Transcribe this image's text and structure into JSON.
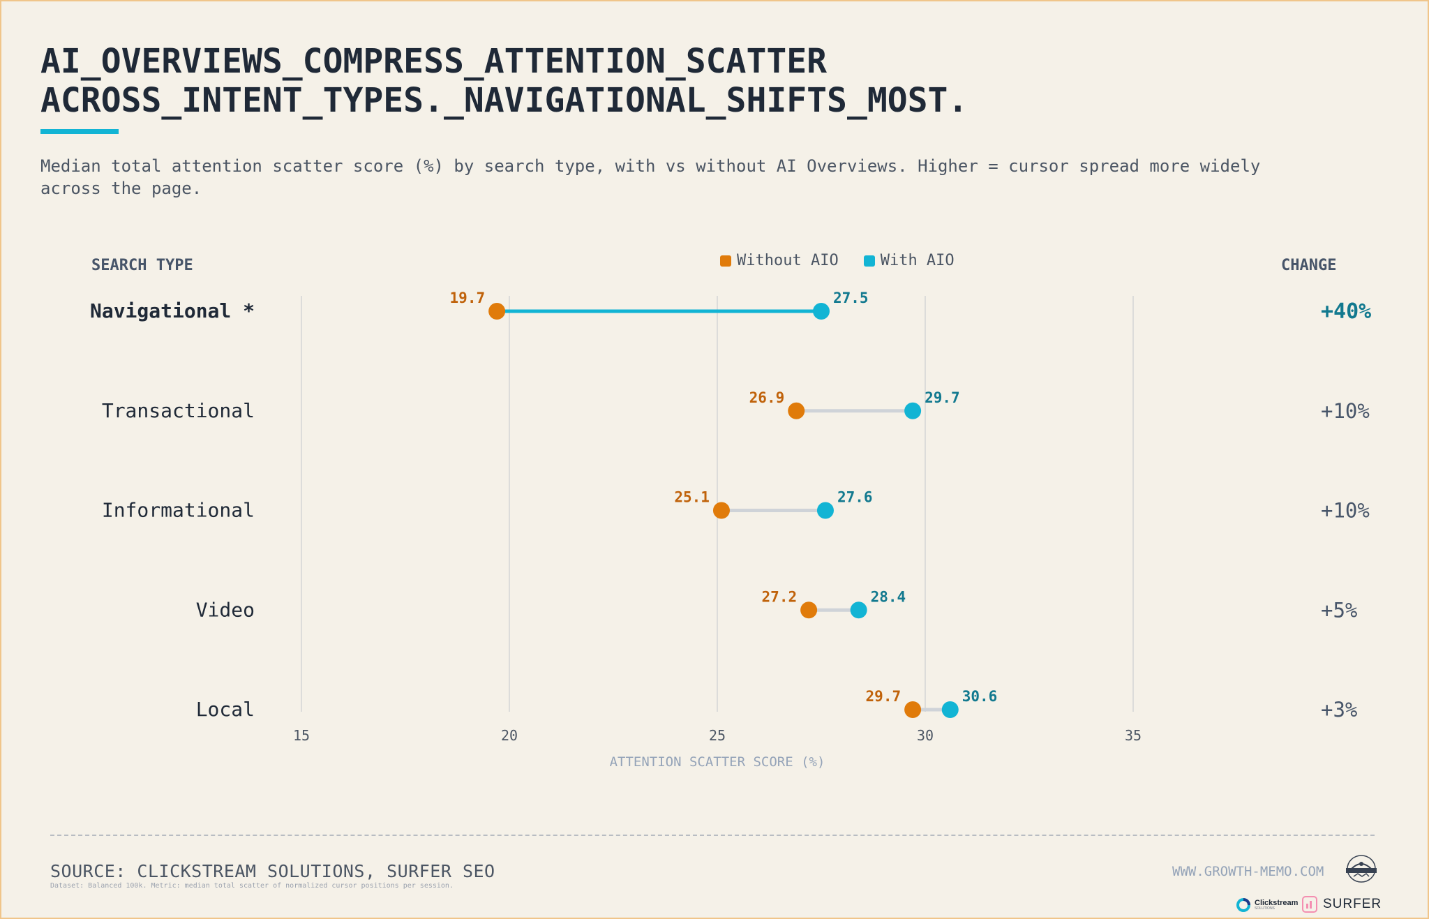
{
  "header": {
    "title_line1": "AI_OVERVIEWS_COMPRESS_ATTENTION_SCATTER",
    "title_line2": "ACROSS_INTENT_TYPES._NAVIGATIONAL_SHIFTS_MOST.",
    "subtitle": "Median total attention scatter score (%) by search type, with vs without AI Overviews. Higher = cursor spread more widely across the page."
  },
  "columns": {
    "search_type": "SEARCH TYPE",
    "change": "CHANGE"
  },
  "colors": {
    "without": "#e07b0a",
    "with": "#12b4d4",
    "without_label": "#c0620a",
    "with_label": "#12798f",
    "connector_default": "#cfd3d8",
    "connector_highlight": "#12b4d4",
    "change_highlight": "#12798f",
    "change_default": "#475569",
    "grid": "#d3d5d6",
    "tick": "#4b5563",
    "axis_title": "#94a3b8"
  },
  "chart_data": {
    "type": "dumbbell",
    "xlabel": "ATTENTION SCATTER SCORE (%)",
    "xlim": [
      15,
      35
    ],
    "xticks": [
      15,
      20,
      25,
      30,
      35
    ],
    "series": [
      {
        "name": "Without AIO",
        "values": [
          19.7,
          26.9,
          25.1,
          27.2,
          29.7
        ]
      },
      {
        "name": "With AIO",
        "values": [
          27.5,
          29.7,
          27.6,
          28.4,
          30.6
        ]
      }
    ],
    "rows": [
      {
        "label": "Navigational *",
        "without": 19.7,
        "with": 27.5,
        "change": "+40%",
        "highlight": true
      },
      {
        "label": "Transactional",
        "without": 26.9,
        "with": 29.7,
        "change": "+10%",
        "highlight": false
      },
      {
        "label": "Informational",
        "without": 25.1,
        "with": 27.6,
        "change": "+10%",
        "highlight": false
      },
      {
        "label": "Video",
        "without": 27.2,
        "with": 28.4,
        "change": "+5%",
        "highlight": false
      },
      {
        "label": "Local",
        "without": 29.7,
        "with": 30.6,
        "change": "+3%",
        "highlight": false
      }
    ],
    "legend_position": "top-center"
  },
  "footer": {
    "source": "SOURCE: CLICKSTREAM SOLUTIONS, SURFER SEO",
    "dataset_note": "Dataset: Balanced 100k. Metric: median total scatter of normalized cursor positions per session.",
    "website": "WWW.GROWTH-MEMO.COM",
    "logo_clickstream": "Clickstream",
    "logo_clickstream_sub": "SOLUTIONS",
    "logo_surfer": "SURFER"
  }
}
